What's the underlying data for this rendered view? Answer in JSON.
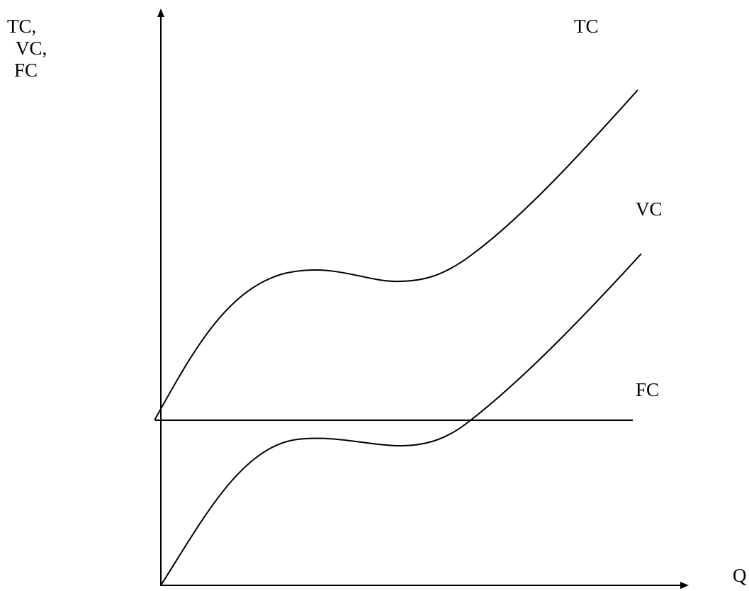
{
  "axes": {
    "y_label_lines": [
      "TC,",
      "VC,",
      "FC"
    ],
    "x_label": "Q"
  },
  "curves": {
    "tc_label": "TC",
    "vc_label": "VC",
    "fc_label": "FC"
  }
}
